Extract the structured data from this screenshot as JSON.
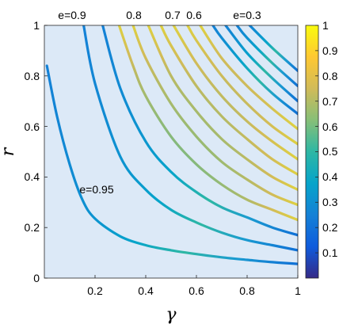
{
  "chart_data": {
    "type": "line",
    "title": "",
    "xlabel": "γ",
    "ylabel": "r",
    "xlim": [
      0,
      1
    ],
    "ylim": [
      0,
      1
    ],
    "grid": false,
    "x_ticks": [
      "0.2",
      "0.4",
      "0.6",
      "0.8",
      "1"
    ],
    "y_ticks": [
      "0",
      "0.2",
      "0.4",
      "0.6",
      "0.8",
      "1"
    ],
    "colorbar": {
      "range": [
        0,
        1
      ],
      "ticks": [
        "0.1",
        "0.2",
        "0.3",
        "0.4",
        "0.5",
        "0.6",
        "0.7",
        "0.8",
        "0.9",
        "1"
      ],
      "colormap": "parula"
    },
    "annotations": [
      {
        "text": "e=0.9",
        "x": 0.11,
        "y": 1.035
      },
      {
        "text": "0.8",
        "x": 0.355,
        "y": 1.035
      },
      {
        "text": "0.7",
        "x": 0.505,
        "y": 1.035
      },
      {
        "text": "0.6",
        "x": 0.59,
        "y": 1.035
      },
      {
        "text": "e=0.3",
        "x": 0.8,
        "y": 1.035
      },
      {
        "text": "e=0.95",
        "x": 0.215,
        "y": 0.355
      }
    ],
    "series": [
      {
        "points": [
          [
            0.01,
            0.84
          ],
          [
            0.05,
            0.64
          ],
          [
            0.1,
            0.45
          ],
          [
            0.15,
            0.31
          ],
          [
            0.2,
            0.235
          ],
          [
            0.3,
            0.165
          ],
          [
            0.4,
            0.13
          ],
          [
            0.5,
            0.11
          ],
          [
            0.6,
            0.095
          ],
          [
            0.7,
            0.082
          ],
          [
            0.8,
            0.072
          ],
          [
            0.9,
            0.063
          ],
          [
            1.0,
            0.056
          ]
        ]
      },
      {
        "points": [
          [
            0.155,
            1.0
          ],
          [
            0.2,
            0.77
          ],
          [
            0.3,
            0.48
          ],
          [
            0.4,
            0.35
          ],
          [
            0.5,
            0.27
          ],
          [
            0.6,
            0.22
          ],
          [
            0.7,
            0.18
          ],
          [
            0.8,
            0.15
          ],
          [
            0.9,
            0.13
          ],
          [
            1.0,
            0.11
          ]
        ]
      },
      {
        "points": [
          [
            0.23,
            1.0
          ],
          [
            0.3,
            0.75
          ],
          [
            0.4,
            0.54
          ],
          [
            0.5,
            0.42
          ],
          [
            0.6,
            0.34
          ],
          [
            0.7,
            0.28
          ],
          [
            0.8,
            0.24
          ],
          [
            0.9,
            0.2
          ],
          [
            1.0,
            0.17
          ]
        ]
      },
      {
        "points": [
          [
            0.295,
            1.0
          ],
          [
            0.35,
            0.84
          ],
          [
            0.4,
            0.72
          ],
          [
            0.5,
            0.56
          ],
          [
            0.6,
            0.45
          ],
          [
            0.7,
            0.37
          ],
          [
            0.8,
            0.31
          ],
          [
            0.9,
            0.27
          ],
          [
            1.0,
            0.23
          ]
        ]
      },
      {
        "points": [
          [
            0.35,
            1.0
          ],
          [
            0.4,
            0.87
          ],
          [
            0.5,
            0.69
          ],
          [
            0.6,
            0.56
          ],
          [
            0.7,
            0.46
          ],
          [
            0.8,
            0.39
          ],
          [
            0.9,
            0.33
          ],
          [
            1.0,
            0.29
          ]
        ]
      },
      {
        "points": [
          [
            0.41,
            1.0
          ],
          [
            0.5,
            0.8
          ],
          [
            0.6,
            0.66
          ],
          [
            0.7,
            0.55
          ],
          [
            0.8,
            0.47
          ],
          [
            0.9,
            0.4
          ],
          [
            1.0,
            0.35
          ]
        ]
      },
      {
        "points": [
          [
            0.46,
            1.0
          ],
          [
            0.5,
            0.92
          ],
          [
            0.6,
            0.76
          ],
          [
            0.7,
            0.64
          ],
          [
            0.8,
            0.55
          ],
          [
            0.9,
            0.47
          ],
          [
            1.0,
            0.41
          ]
        ]
      },
      {
        "points": [
          [
            0.51,
            1.0
          ],
          [
            0.6,
            0.85
          ],
          [
            0.7,
            0.72
          ],
          [
            0.8,
            0.62
          ],
          [
            0.9,
            0.54
          ],
          [
            1.0,
            0.47
          ]
        ]
      },
      {
        "points": [
          [
            0.565,
            1.0
          ],
          [
            0.6,
            0.94
          ],
          [
            0.7,
            0.8
          ],
          [
            0.8,
            0.69
          ],
          [
            0.9,
            0.6
          ],
          [
            1.0,
            0.53
          ]
        ]
      },
      {
        "points": [
          [
            0.615,
            1.0
          ],
          [
            0.7,
            0.87
          ],
          [
            0.8,
            0.76
          ],
          [
            0.9,
            0.67
          ],
          [
            1.0,
            0.59
          ]
        ]
      },
      {
        "points": [
          [
            0.665,
            1.0
          ],
          [
            0.7,
            0.95
          ],
          [
            0.8,
            0.83
          ],
          [
            0.9,
            0.73
          ],
          [
            1.0,
            0.65
          ]
        ]
      },
      {
        "points": [
          [
            0.715,
            1.0
          ],
          [
            0.8,
            0.89
          ],
          [
            0.9,
            0.79
          ],
          [
            1.0,
            0.7
          ]
        ]
      },
      {
        "points": [
          [
            0.76,
            1.0
          ],
          [
            0.8,
            0.95
          ],
          [
            0.9,
            0.85
          ],
          [
            1.0,
            0.76
          ]
        ]
      },
      {
        "points": [
          [
            0.81,
            1.0
          ],
          [
            0.9,
            0.91
          ],
          [
            1.0,
            0.82
          ]
        ]
      }
    ]
  }
}
